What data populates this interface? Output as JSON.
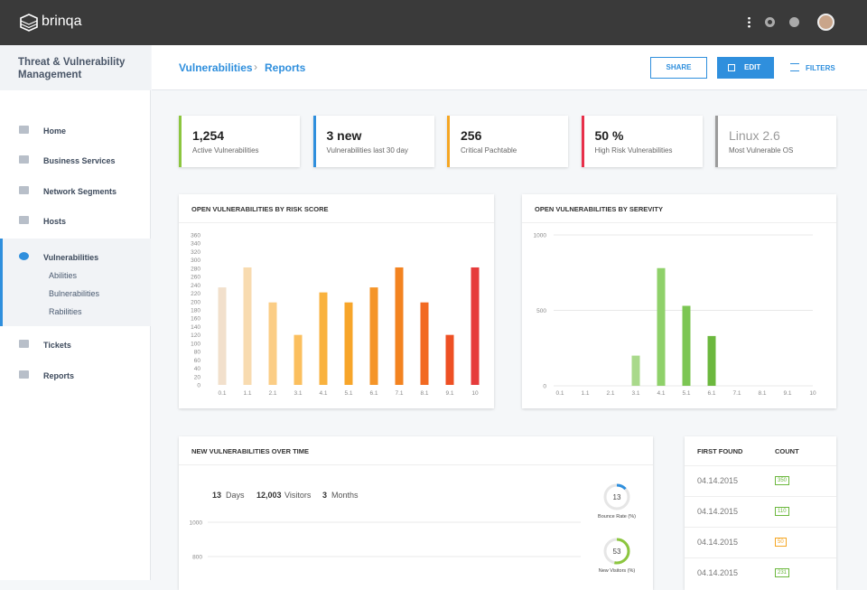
{
  "header": {
    "brand": "brinqa"
  },
  "sidebar": {
    "title": "Threat & Vulnerability Management",
    "nav": [
      {
        "label": "Home"
      },
      {
        "label": "Business Services"
      },
      {
        "label": "Network Segments"
      },
      {
        "label": "Hosts"
      },
      {
        "label": "Vulnerabilities",
        "children": [
          "Abilities",
          "Bulnerabilities",
          "Rabilities"
        ]
      },
      {
        "label": "Tickets"
      },
      {
        "label": "Reports"
      }
    ]
  },
  "toolbar": {
    "breadcrumb": [
      "Vulnerabilities",
      "Reports"
    ],
    "buttons": {
      "share": "SHARE",
      "edit": "EDIT",
      "filters": "FILTERS"
    }
  },
  "kpis": [
    {
      "value": "1,254",
      "label": "Active Vulnerabilities",
      "color": "#8cc63f"
    },
    {
      "value": "3 new",
      "label": "Vulnerabilities last 30 day",
      "color": "#2f8fdd"
    },
    {
      "value": "256",
      "label": "Critical Pachtable",
      "color": "#f5a623"
    },
    {
      "value": "50 %",
      "label": "High Risk Vulnerabilities",
      "color": "#e8304a"
    },
    {
      "value": "Linux 2.6",
      "label": "Most Vulnerable OS",
      "color": "#9b9b9b"
    }
  ],
  "charts": [
    {
      "type": "bar",
      "title": "OPEN VULNERABILITIES BY RISK SCORE",
      "categories": [
        "0.1",
        "1.1",
        "2.1",
        "3.1",
        "4.1",
        "5.1",
        "6.1",
        "7.1",
        "8.1",
        "9.1",
        "10"
      ],
      "values": [
        234,
        282,
        198,
        120,
        222,
        198,
        234,
        282,
        198,
        120,
        282
      ],
      "colors": [
        "#f2e0cc",
        "#f8dbb0",
        "#fbcd85",
        "#fbbf5e",
        "#f9b23e",
        "#f7a52a",
        "#f59528",
        "#f38320",
        "#f26a22",
        "#ee5024",
        "#e63c3c"
      ],
      "ylim": [
        0,
        360
      ],
      "yticks": [
        0,
        20,
        40,
        60,
        80,
        100,
        120,
        140,
        160,
        180,
        200,
        220,
        240,
        260,
        280,
        300,
        320,
        340,
        360
      ],
      "grid": false
    },
    {
      "type": "bar",
      "title": "OPEN VULNERABILITIES BY SEREVITY",
      "categories": [
        "0.1",
        "1.1",
        "2.1",
        "3.1",
        "4.1",
        "5.1",
        "6.1",
        "7.1",
        "8.1",
        "9.1",
        "10"
      ],
      "values": [
        0,
        0,
        0,
        200,
        780,
        530,
        330,
        0,
        0,
        0,
        0
      ],
      "colors": [
        "#b5df9a",
        "#b5df9a",
        "#b5df9a",
        "#a9d98b",
        "#8fd16a",
        "#7cc653",
        "#6cb83e",
        "#6cb83e",
        "#6cb83e",
        "#6cb83e",
        "#6cb83e"
      ],
      "ylim": [
        0,
        1000
      ],
      "yticks": [
        0,
        500,
        1000
      ],
      "grid": true
    }
  ],
  "timeline": {
    "title": "NEW VULNERABILITIES OVER TIME",
    "stats": [
      {
        "value": "13",
        "label": "Days"
      },
      {
        "value": "12,003",
        "label": "Visitors"
      },
      {
        "value": "3",
        "label": "Months"
      }
    ],
    "yticks": [
      800,
      1000
    ],
    "ylim": [
      700,
      1000
    ],
    "gauges": [
      {
        "value": 13,
        "label": "Bounce Rate (%)",
        "color": "#2f8fdd"
      },
      {
        "value": 53,
        "label": "New Visitors (%)",
        "color": "#8cc63f"
      }
    ]
  },
  "table": {
    "headers": [
      "FIRST FOUND",
      "COUNT"
    ],
    "rows": [
      [
        "04.14.2015",
        350
      ],
      [
        "04.14.2015",
        110
      ],
      [
        "04.14.2015",
        50
      ],
      [
        "04.14.2015",
        231
      ]
    ],
    "badge_colors": [
      "#6cb83e",
      "#6cb83e",
      "#f5a623",
      "#6cb83e"
    ]
  }
}
